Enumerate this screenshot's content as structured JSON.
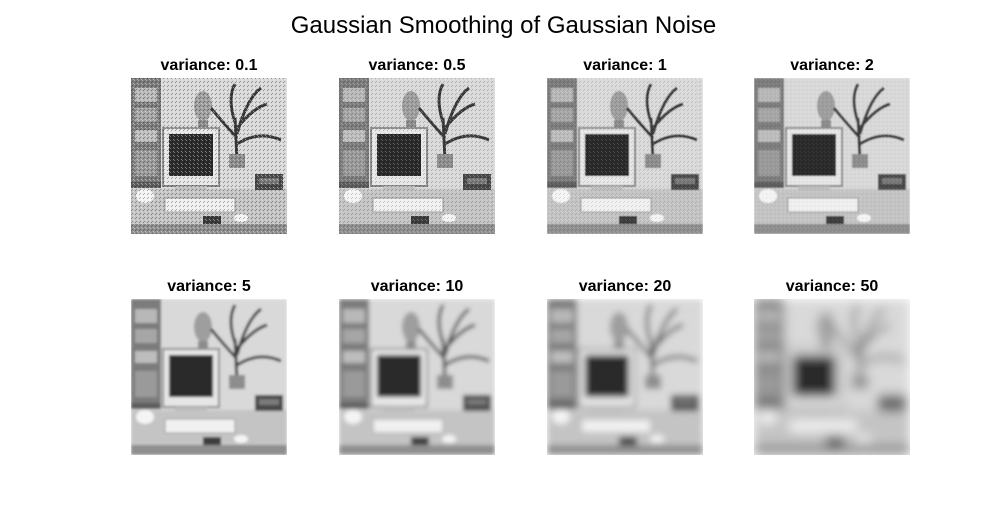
{
  "figure": {
    "title": "Gaussian Smoothing of Gaussian Noise"
  },
  "panels": [
    {
      "title": "variance: 0.1",
      "variance": 0.1
    },
    {
      "title": "variance: 0.5",
      "variance": 0.5
    },
    {
      "title": "variance: 1",
      "variance": 1
    },
    {
      "title": "variance: 2",
      "variance": 2
    },
    {
      "title": "variance: 5",
      "variance": 5
    },
    {
      "title": "variance: 10",
      "variance": 10
    },
    {
      "title": "variance: 20",
      "variance": 20
    },
    {
      "title": "variance: 50",
      "variance": 50
    }
  ],
  "image_icon": "office-desk-computer-grayscale-photo"
}
